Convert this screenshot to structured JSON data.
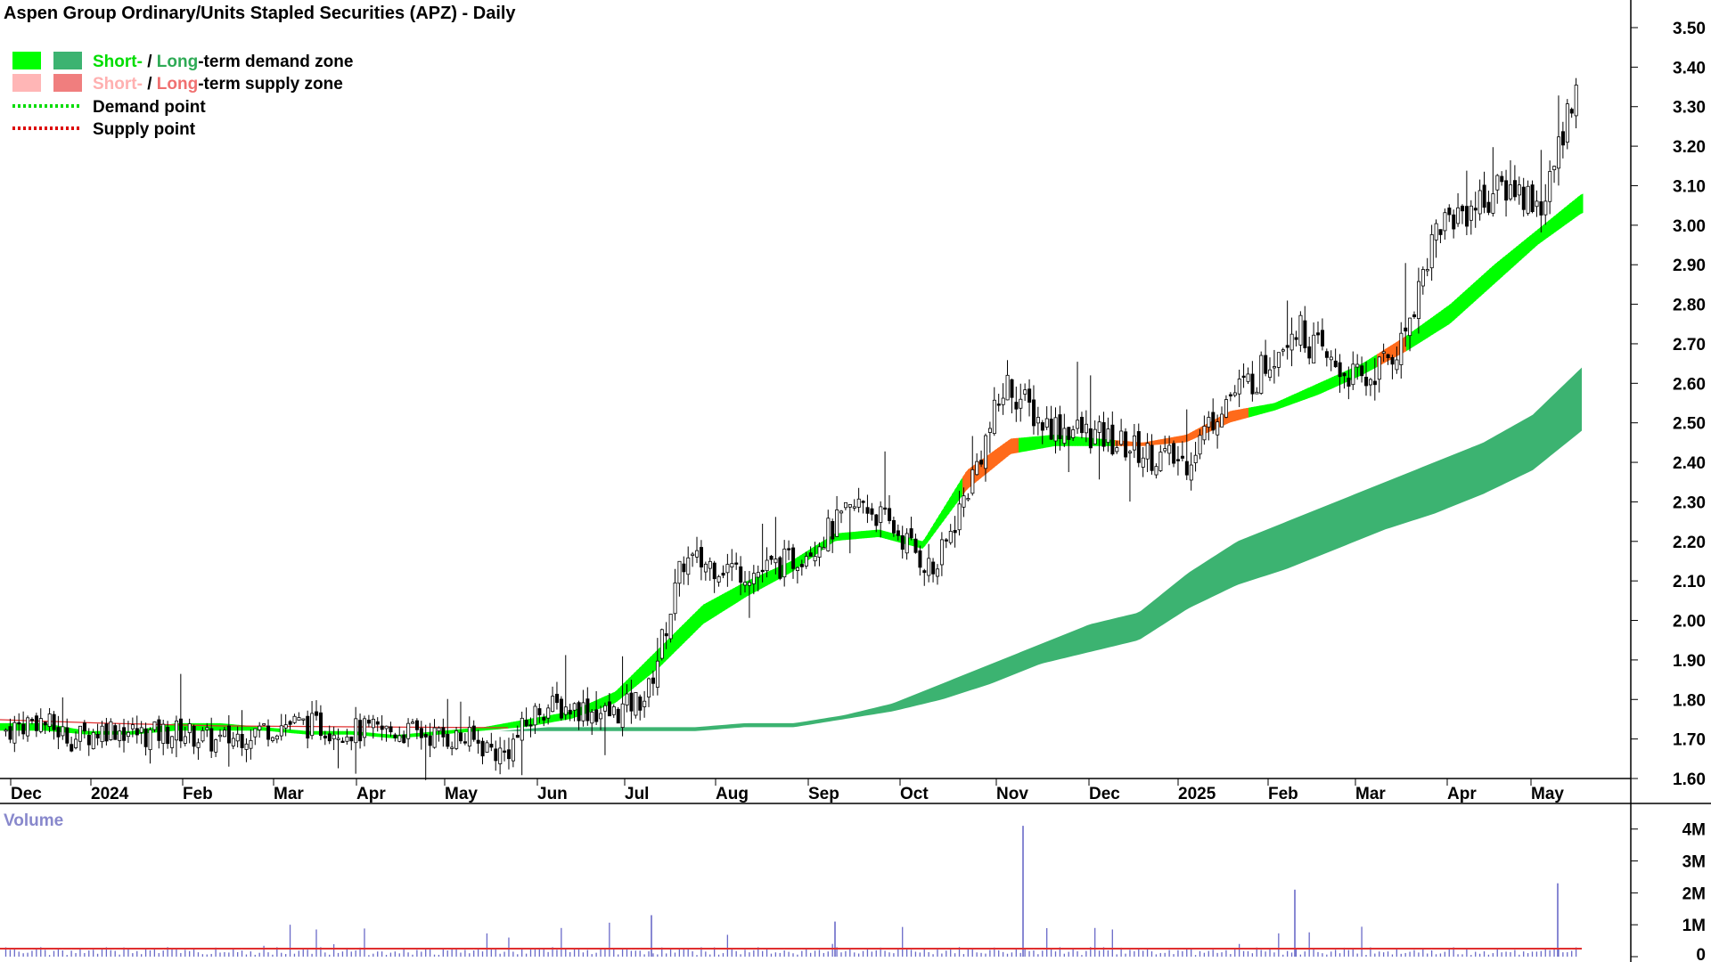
{
  "chart_data": {
    "type": "candlestick",
    "title": "Aspen Group Ordinary/Units Stapled Securities (APZ) - Daily",
    "legend": {
      "placement": "top-left",
      "items": [
        {
          "prefix_short": "Short-",
          "sep": " / ",
          "prefix_long": "Long",
          "rest": "-term demand zone",
          "short_color": "#00ee00",
          "long_color": "#3cb371"
        },
        {
          "prefix_short": "Short-",
          "sep": " / ",
          "prefix_long": "Long",
          "rest": "-term supply zone",
          "short_color": "#ffb0b0",
          "long_color": "#f08080"
        },
        {
          "label": "Demand point",
          "color": "#00dd00"
        },
        {
          "label": "Supply point",
          "color": "#dd0000"
        }
      ]
    },
    "price_axis": {
      "min": 1.6,
      "max": 3.5,
      "ticks": [
        "3.50",
        "3.40",
        "3.30",
        "3.20",
        "3.10",
        "3.00",
        "2.90",
        "2.80",
        "2.70",
        "2.60",
        "2.50",
        "2.40",
        "2.30",
        "2.20",
        "2.10",
        "2.00",
        "1.90",
        "1.80",
        "1.70",
        "1.60"
      ]
    },
    "x_axis": {
      "months": [
        "Dec",
        "2024",
        "Feb",
        "Mar",
        "Apr",
        "May",
        "Jun",
        "Jul",
        "Aug",
        "Sep",
        "Oct",
        "Nov",
        "Dec",
        "2025",
        "Feb",
        "Mar",
        "Apr",
        "May"
      ]
    },
    "close_anchors": [
      1.72,
      1.75,
      1.7,
      1.73,
      1.71,
      1.72,
      1.69,
      1.72,
      1.74,
      1.73,
      1.72,
      1.72,
      1.71,
      1.7,
      1.66,
      1.78,
      1.78,
      1.76,
      1.81,
      2.15,
      2.14,
      2.12,
      2.15,
      2.22,
      2.3,
      2.22,
      2.12,
      2.35,
      2.6,
      2.5,
      2.48,
      2.45,
      2.42,
      2.4,
      2.55,
      2.62,
      2.75,
      2.65,
      2.6,
      2.7,
      3.0,
      3.05,
      3.1,
      3.05,
      3.42
    ],
    "short_zone_upper": [
      1.74,
      1.74,
      1.72,
      1.72,
      1.74,
      1.74,
      1.73,
      1.72,
      1.72,
      1.71,
      1.72,
      1.73,
      1.75,
      1.77,
      1.82,
      1.93,
      2.04,
      2.1,
      2.15,
      2.22,
      2.23,
      2.2,
      2.38,
      2.46,
      2.47,
      2.46,
      2.45,
      2.47,
      2.53,
      2.55,
      2.6,
      2.65,
      2.72,
      2.8,
      2.9,
      2.99,
      3.08
    ],
    "short_zone_lower": [
      1.72,
      1.72,
      1.71,
      1.71,
      1.72,
      1.72,
      1.72,
      1.71,
      1.71,
      1.7,
      1.71,
      1.72,
      1.73,
      1.75,
      1.79,
      1.88,
      1.99,
      2.06,
      2.12,
      2.2,
      2.21,
      2.18,
      2.33,
      2.42,
      2.44,
      2.44,
      2.44,
      2.45,
      2.5,
      2.53,
      2.57,
      2.62,
      2.68,
      2.75,
      2.85,
      2.95,
      3.03
    ],
    "long_zone_upper": [
      1.72,
      1.73,
      1.73,
      1.73,
      1.73,
      1.74,
      1.74,
      1.76,
      1.79,
      1.84,
      1.89,
      1.94,
      1.99,
      2.02,
      2.12,
      2.2,
      2.25,
      2.3,
      2.35,
      2.4,
      2.45,
      2.52,
      2.64
    ],
    "long_zone_lower": [
      1.72,
      1.72,
      1.72,
      1.72,
      1.72,
      1.73,
      1.73,
      1.75,
      1.77,
      1.8,
      1.84,
      1.89,
      1.92,
      1.95,
      2.03,
      2.09,
      2.13,
      2.18,
      2.23,
      2.27,
      2.32,
      2.38,
      2.48
    ],
    "volume_axis": {
      "ticks": [
        "4M",
        "3M",
        "2M",
        "1M",
        "0"
      ]
    },
    "volume_label": "Volume",
    "volume_spikes": [
      {
        "month_index": 11,
        "value": 4.1
      },
      {
        "month_index": 14,
        "value": 2.1
      },
      {
        "month_index": 17,
        "value": 2.3
      },
      {
        "month_index": 7,
        "value": 1.3
      },
      {
        "month_index": 9,
        "value": 1.1
      }
    ],
    "volume_ma_level": 0.25,
    "colors": {
      "short_demand": "#00ff00",
      "long_demand": "#3cb371",
      "short_supply": "#ff6a1a",
      "ma_red": "#e03030",
      "volume_bar": "#6a6ac8"
    }
  }
}
